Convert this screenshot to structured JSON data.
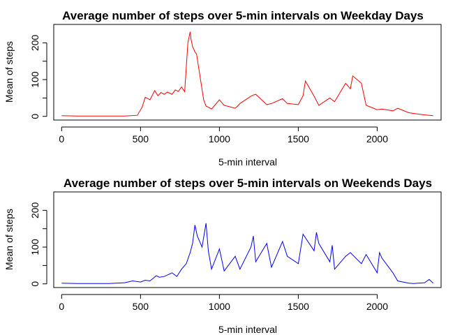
{
  "chart_data": [
    {
      "type": "line",
      "title": "Average number of steps over 5-min intervals on Weekday Days",
      "xlabel": "5-min interval",
      "ylabel": "Mean of steps",
      "xlim": [
        -50,
        2405
      ],
      "ylim": [
        -10,
        250
      ],
      "xticks": [
        0,
        500,
        1000,
        1500,
        2000
      ],
      "yticks": [
        0,
        100,
        200
      ],
      "color": "#ff0000",
      "series": [
        {
          "x": [
            0,
            100,
            200,
            300,
            400,
            480,
            510,
            530,
            560,
            590,
            610,
            630,
            650,
            670,
            700,
            720,
            740,
            760,
            780,
            800,
            815,
            820,
            830,
            835,
            845,
            855,
            900,
            915,
            930,
            950,
            1000,
            1030,
            1100,
            1115,
            1130,
            1200,
            1215,
            1230,
            1300,
            1330,
            1400,
            1430,
            1500,
            1530,
            1545,
            1600,
            1630,
            1700,
            1730,
            1800,
            1830,
            1845,
            1900,
            1915,
            1930,
            2000,
            2030,
            2100,
            2130,
            2200,
            2230,
            2300,
            2355
          ],
          "y": [
            2,
            1,
            1,
            1,
            1,
            3,
            25,
            52,
            45,
            70,
            56,
            65,
            60,
            66,
            60,
            72,
            68,
            80,
            67,
            200,
            230,
            210,
            190,
            185,
            175,
            170,
            45,
            28,
            25,
            20,
            45,
            30,
            22,
            28,
            35,
            55,
            58,
            60,
            32,
            35,
            48,
            35,
            32,
            56,
            96,
            55,
            30,
            50,
            40,
            90,
            75,
            110,
            90,
            60,
            30,
            18,
            20,
            15,
            22,
            10,
            8,
            4,
            2
          ]
        }
      ]
    },
    {
      "type": "line",
      "title": "Average number of steps over 5-min intervals on Weekends Days",
      "xlabel": "5-min interval",
      "ylabel": "Mean of steps",
      "xlim": [
        -50,
        2405
      ],
      "ylim": [
        -10,
        250
      ],
      "xticks": [
        0,
        500,
        1000,
        1500,
        2000
      ],
      "yticks": [
        0,
        100,
        200
      ],
      "color": "#0000ff",
      "series": [
        {
          "x": [
            0,
            100,
            200,
            300,
            400,
            450,
            500,
            530,
            560,
            600,
            620,
            650,
            700,
            730,
            760,
            790,
            815,
            830,
            845,
            860,
            890,
            915,
            930,
            950,
            1000,
            1030,
            1100,
            1130,
            1200,
            1215,
            1230,
            1300,
            1330,
            1400,
            1430,
            1500,
            1530,
            1600,
            1615,
            1630,
            1700,
            1715,
            1730,
            1800,
            1830,
            1900,
            1930,
            2000,
            2015,
            2030,
            2100,
            2130,
            2200,
            2230,
            2300,
            2330,
            2355
          ],
          "y": [
            2,
            1,
            1,
            1,
            3,
            8,
            5,
            10,
            8,
            22,
            18,
            20,
            30,
            20,
            40,
            55,
            85,
            110,
            160,
            130,
            100,
            165,
            90,
            40,
            95,
            35,
            75,
            40,
            100,
            130,
            60,
            110,
            45,
            115,
            75,
            55,
            135,
            90,
            140,
            110,
            60,
            105,
            40,
            75,
            85,
            55,
            80,
            30,
            85,
            70,
            30,
            8,
            2,
            1,
            3,
            12,
            2
          ]
        }
      ]
    }
  ]
}
